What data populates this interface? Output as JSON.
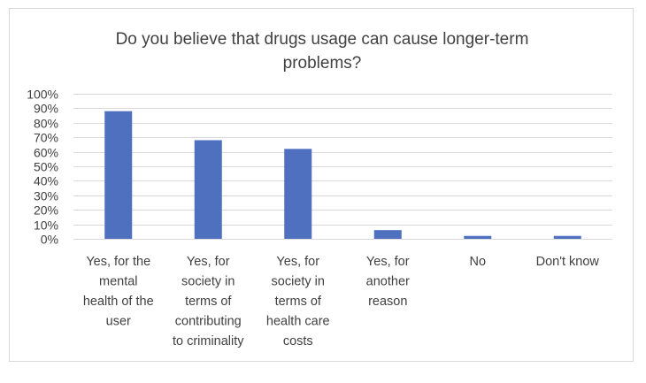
{
  "chart_data": {
    "type": "bar",
    "title_lines": [
      "Do you believe that drugs usage can cause longer-term",
      "problems?"
    ],
    "categories": [
      "Yes, for the mental health of the user",
      "Yes, for society in terms of contributing to criminality",
      "Yes, for society in terms of health care costs",
      "Yes, for another reason",
      "No",
      "Don't know"
    ],
    "category_lines": [
      [
        "Yes, for the",
        "mental",
        "health of the",
        "user"
      ],
      [
        "Yes, for",
        "society in",
        "terms of",
        "contributing",
        "to criminality"
      ],
      [
        "Yes, for",
        "society in",
        "terms of",
        "health care",
        "costs"
      ],
      [
        "Yes, for",
        "another",
        "reason"
      ],
      [
        "No"
      ],
      [
        "Don't know"
      ]
    ],
    "values": [
      88,
      68,
      62,
      6,
      2,
      2
    ],
    "ylim": [
      0,
      100
    ],
    "y_ticks": [
      0,
      10,
      20,
      30,
      40,
      50,
      60,
      70,
      80,
      90,
      100
    ],
    "y_tick_labels": [
      "0%",
      "10%",
      "20%",
      "30%",
      "40%",
      "50%",
      "60%",
      "70%",
      "80%",
      "90%",
      "100%"
    ],
    "grid": true,
    "bar_color": "#4f6fbf",
    "grid_color": "#d9d9d9"
  }
}
